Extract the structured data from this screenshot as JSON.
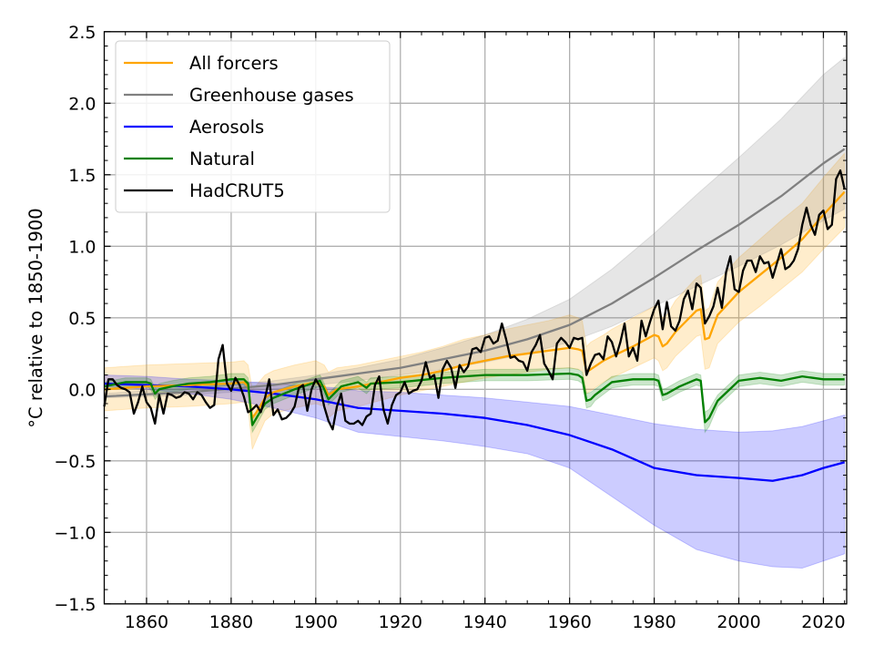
{
  "chart_data": {
    "type": "line",
    "title": "",
    "xlabel": "",
    "ylabel": "°C relative to 1850-1900",
    "xlim": [
      1850,
      2025.5
    ],
    "ylim": [
      -1.5,
      2.5
    ],
    "grid": true,
    "legend_position": "top-left",
    "x_ticks": [
      1860,
      1880,
      1900,
      1920,
      1940,
      1960,
      1980,
      2000,
      2020
    ],
    "x_tick_labels": [
      "1860",
      "1880",
      "1900",
      "1920",
      "1940",
      "1960",
      "1980",
      "2000",
      "2020"
    ],
    "y_ticks": [
      -1.5,
      -1.0,
      -0.5,
      0.0,
      0.5,
      1.0,
      1.5,
      2.0,
      2.5
    ],
    "y_tick_labels": [
      "−1.5",
      "−1.0",
      "−0.5",
      "0.0",
      "0.5",
      "1.0",
      "1.5",
      "2.0",
      "2.5"
    ],
    "series": [
      {
        "name": "All forcers",
        "color": "#FFA500",
        "x": [
          1850,
          1860,
          1870,
          1880,
          1883,
          1884,
          1885,
          1886,
          1888,
          1890,
          1895,
          1900,
          1902,
          1903,
          1905,
          1910,
          1915,
          1920,
          1925,
          1930,
          1935,
          1940,
          1945,
          1950,
          1955,
          1960,
          1962,
          1963,
          1964,
          1965,
          1968,
          1970,
          1975,
          1980,
          1981,
          1982,
          1983,
          1985,
          1990,
          1991,
          1992,
          1993,
          1995,
          2000,
          2005,
          2010,
          2015,
          2020,
          2025
        ],
        "y": [
          0.0,
          0.02,
          0.03,
          0.04,
          0.05,
          0.02,
          -0.2,
          -0.16,
          -0.06,
          -0.02,
          0.02,
          0.05,
          0.02,
          -0.04,
          0.0,
          0.02,
          0.05,
          0.08,
          0.1,
          0.13,
          0.17,
          0.2,
          0.23,
          0.25,
          0.27,
          0.29,
          0.28,
          0.27,
          0.12,
          0.14,
          0.2,
          0.23,
          0.3,
          0.38,
          0.37,
          0.3,
          0.32,
          0.4,
          0.55,
          0.56,
          0.35,
          0.36,
          0.52,
          0.68,
          0.8,
          0.92,
          1.05,
          1.22,
          1.38
        ],
        "lower": [
          -0.15,
          -0.13,
          -0.12,
          -0.1,
          -0.09,
          -0.12,
          -0.42,
          -0.35,
          -0.22,
          -0.17,
          -0.13,
          -0.1,
          -0.12,
          -0.2,
          -0.15,
          -0.12,
          -0.08,
          -0.04,
          -0.01,
          0.02,
          0.05,
          0.08,
          0.1,
          0.12,
          0.14,
          0.15,
          0.14,
          0.13,
          -0.03,
          -0.01,
          0.05,
          0.08,
          0.15,
          0.22,
          0.2,
          0.13,
          0.15,
          0.23,
          0.37,
          0.38,
          0.14,
          0.15,
          0.32,
          0.47,
          0.58,
          0.7,
          0.82,
          0.98,
          1.13
        ],
        "upper": [
          0.15,
          0.17,
          0.18,
          0.19,
          0.2,
          0.17,
          0.0,
          0.03,
          0.1,
          0.13,
          0.17,
          0.2,
          0.17,
          0.12,
          0.15,
          0.17,
          0.2,
          0.23,
          0.26,
          0.3,
          0.35,
          0.38,
          0.42,
          0.45,
          0.48,
          0.52,
          0.5,
          0.48,
          0.3,
          0.33,
          0.38,
          0.42,
          0.5,
          0.58,
          0.58,
          0.5,
          0.52,
          0.62,
          0.78,
          0.8,
          0.55,
          0.57,
          0.75,
          0.92,
          1.05,
          1.18,
          1.3,
          1.48,
          1.65
        ]
      },
      {
        "name": "Greenhouse gases",
        "color": "#808080",
        "x": [
          1850,
          1870,
          1890,
          1900,
          1910,
          1920,
          1930,
          1940,
          1950,
          1960,
          1970,
          1980,
          1990,
          2000,
          2010,
          2020,
          2025
        ],
        "y": [
          -0.05,
          -0.02,
          0.03,
          0.07,
          0.11,
          0.15,
          0.21,
          0.27,
          0.35,
          0.45,
          0.6,
          0.78,
          0.97,
          1.15,
          1.35,
          1.58,
          1.68
        ],
        "lower": [
          -0.06,
          -0.04,
          0.0,
          0.03,
          0.06,
          0.1,
          0.14,
          0.19,
          0.25,
          0.33,
          0.44,
          0.58,
          0.72,
          0.86,
          1.01,
          1.18,
          1.26
        ],
        "upper": [
          -0.03,
          0.01,
          0.06,
          0.1,
          0.15,
          0.21,
          0.29,
          0.38,
          0.49,
          0.63,
          0.84,
          1.09,
          1.36,
          1.62,
          1.89,
          2.2,
          2.32
        ]
      },
      {
        "name": "Aerosols",
        "color": "#0000FF",
        "x": [
          1850,
          1860,
          1870,
          1880,
          1890,
          1900,
          1905,
          1910,
          1920,
          1930,
          1940,
          1950,
          1960,
          1970,
          1980,
          1990,
          2000,
          2008,
          2015,
          2020,
          2025
        ],
        "y": [
          0.04,
          0.03,
          0.02,
          0.0,
          -0.03,
          -0.07,
          -0.1,
          -0.13,
          -0.15,
          -0.17,
          -0.2,
          -0.25,
          -0.32,
          -0.42,
          -0.55,
          -0.6,
          -0.62,
          -0.64,
          -0.6,
          -0.55,
          -0.51
        ],
        "lower": [
          0.02,
          0.0,
          -0.03,
          -0.07,
          -0.13,
          -0.2,
          -0.25,
          -0.3,
          -0.33,
          -0.36,
          -0.4,
          -0.45,
          -0.55,
          -0.75,
          -0.95,
          -1.12,
          -1.2,
          -1.24,
          -1.25,
          -1.2,
          -1.15
        ],
        "upper": [
          0.1,
          0.09,
          0.07,
          0.06,
          0.04,
          0.02,
          0.01,
          -0.01,
          -0.02,
          -0.04,
          -0.06,
          -0.09,
          -0.12,
          -0.18,
          -0.24,
          -0.28,
          -0.3,
          -0.29,
          -0.26,
          -0.22,
          -0.18
        ]
      },
      {
        "name": "Natural",
        "color": "#008000",
        "x": [
          1850,
          1855,
          1860,
          1861,
          1862,
          1863,
          1866,
          1870,
          1875,
          1880,
          1883,
          1884,
          1885,
          1886,
          1888,
          1890,
          1895,
          1900,
          1901,
          1902,
          1903,
          1906,
          1910,
          1912,
          1913,
          1920,
          1930,
          1940,
          1950,
          1960,
          1962,
          1963,
          1964,
          1965,
          1966,
          1970,
          1975,
          1980,
          1981,
          1982,
          1983,
          1986,
          1990,
          1991,
          1992,
          1993,
          1995,
          2000,
          2005,
          2010,
          2015,
          2020,
          2025
        ],
        "y": [
          0.02,
          0.05,
          0.05,
          0.04,
          -0.03,
          0.0,
          0.02,
          0.04,
          0.05,
          0.07,
          0.07,
          0.04,
          -0.25,
          -0.2,
          -0.1,
          -0.06,
          0.0,
          0.05,
          0.06,
          0.0,
          -0.07,
          0.02,
          0.05,
          0.01,
          0.04,
          0.05,
          0.08,
          0.1,
          0.1,
          0.11,
          0.1,
          0.08,
          -0.08,
          -0.07,
          -0.04,
          0.05,
          0.07,
          0.07,
          0.06,
          -0.04,
          -0.03,
          0.02,
          0.07,
          0.06,
          -0.23,
          -0.2,
          -0.08,
          0.06,
          0.08,
          0.06,
          0.09,
          0.07,
          0.07
        ],
        "lower": [
          -0.01,
          0.02,
          0.02,
          0.0,
          -0.07,
          -0.04,
          -0.02,
          0.0,
          0.01,
          0.03,
          0.03,
          0.0,
          -0.3,
          -0.25,
          -0.14,
          -0.1,
          -0.04,
          0.01,
          0.02,
          -0.04,
          -0.11,
          -0.02,
          0.01,
          -0.03,
          0.0,
          0.01,
          0.04,
          0.06,
          0.06,
          0.07,
          0.06,
          0.04,
          -0.13,
          -0.12,
          -0.08,
          0.01,
          0.03,
          0.03,
          0.02,
          -0.08,
          -0.07,
          -0.02,
          0.03,
          0.02,
          -0.3,
          -0.26,
          -0.12,
          0.02,
          0.04,
          0.02,
          0.05,
          0.03,
          0.03
        ],
        "upper": [
          0.05,
          0.08,
          0.08,
          0.07,
          0.01,
          0.04,
          0.06,
          0.08,
          0.09,
          0.11,
          0.11,
          0.08,
          -0.2,
          -0.15,
          -0.06,
          -0.02,
          0.04,
          0.09,
          0.1,
          0.04,
          -0.03,
          0.06,
          0.09,
          0.05,
          0.08,
          0.09,
          0.12,
          0.14,
          0.14,
          0.15,
          0.14,
          0.12,
          -0.03,
          -0.02,
          0.0,
          0.09,
          0.11,
          0.11,
          0.1,
          0.0,
          0.01,
          0.06,
          0.11,
          0.1,
          -0.16,
          -0.14,
          -0.04,
          0.1,
          0.12,
          0.1,
          0.13,
          0.11,
          0.11
        ]
      },
      {
        "name": "HadCRUT5",
        "color": "#000000",
        "x_start": 1850,
        "y": [
          -0.12,
          0.07,
          0.07,
          0.03,
          0.01,
          0.0,
          -0.02,
          -0.17,
          -0.09,
          0.02,
          -0.09,
          -0.13,
          -0.24,
          -0.04,
          -0.17,
          -0.03,
          -0.04,
          -0.06,
          -0.05,
          -0.02,
          -0.03,
          -0.07,
          -0.02,
          -0.04,
          -0.09,
          -0.13,
          -0.11,
          0.21,
          0.31,
          0.04,
          -0.01,
          0.08,
          0.03,
          -0.05,
          -0.16,
          -0.14,
          -0.11,
          -0.16,
          -0.06,
          0.07,
          -0.18,
          -0.14,
          -0.21,
          -0.2,
          -0.17,
          -0.12,
          0.01,
          0.03,
          -0.15,
          0.0,
          0.07,
          0.02,
          -0.12,
          -0.22,
          -0.28,
          -0.12,
          -0.03,
          -0.22,
          -0.24,
          -0.24,
          -0.22,
          -0.25,
          -0.19,
          -0.17,
          0.03,
          0.09,
          -0.14,
          -0.24,
          -0.11,
          -0.04,
          -0.02,
          0.05,
          -0.03,
          -0.01,
          0.0,
          0.06,
          0.19,
          0.08,
          0.1,
          -0.06,
          0.14,
          0.2,
          0.15,
          0.01,
          0.17,
          0.12,
          0.16,
          0.28,
          0.29,
          0.26,
          0.36,
          0.37,
          0.32,
          0.34,
          0.46,
          0.35,
          0.22,
          0.23,
          0.2,
          0.19,
          0.13,
          0.26,
          0.31,
          0.38,
          0.18,
          0.13,
          0.07,
          0.32,
          0.36,
          0.33,
          0.29,
          0.36,
          0.35,
          0.36,
          0.1,
          0.18,
          0.24,
          0.25,
          0.21,
          0.37,
          0.33,
          0.23,
          0.33,
          0.46,
          0.23,
          0.29,
          0.2,
          0.48,
          0.37,
          0.47,
          0.56,
          0.62,
          0.42,
          0.61,
          0.44,
          0.41,
          0.48,
          0.63,
          0.69,
          0.56,
          0.74,
          0.71,
          0.46,
          0.51,
          0.58,
          0.71,
          0.57,
          0.82,
          0.93,
          0.7,
          0.68,
          0.83,
          0.9,
          0.9,
          0.82,
          0.93,
          0.88,
          0.89,
          0.78,
          0.88,
          0.98,
          0.84,
          0.86,
          0.9,
          0.98,
          1.15,
          1.27,
          1.15,
          1.08,
          1.22,
          1.25,
          1.12,
          1.15,
          1.47,
          1.53,
          1.4
        ]
      }
    ]
  }
}
